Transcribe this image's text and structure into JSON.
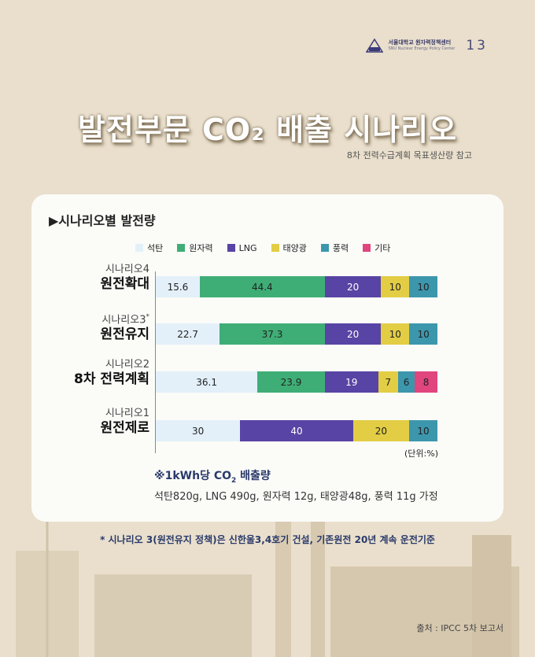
{
  "header": {
    "org_ko": "서울대학교 원자력정책센터",
    "org_en": "SNU Nuclear Energy Policy Center",
    "page_number": "13"
  },
  "title": "발전부문 CO₂ 배출 시나리오",
  "subtitle": "8차 전력수급계획 목표생산량 참고",
  "section_title": "▶시나리오별 발전량",
  "legend": [
    {
      "label": "석탄",
      "color": "#e3f0f9"
    },
    {
      "label": "원자력",
      "color": "#3fae76"
    },
    {
      "label": "LNG",
      "color": "#5844a4"
    },
    {
      "label": "태양광",
      "color": "#e2cd45"
    },
    {
      "label": "풍력",
      "color": "#3c97ad"
    },
    {
      "label": "기타",
      "color": "#e0457e"
    }
  ],
  "chart_data": {
    "type": "bar",
    "orientation": "horizontal",
    "stacked": true,
    "unit": "(단위:%)",
    "categories": [
      {
        "scenario": "시나리오4",
        "name": "원전확대",
        "mark": ""
      },
      {
        "scenario": "시나리오3",
        "name": "원전유지",
        "mark": "*"
      },
      {
        "scenario": "시나리오2",
        "name": "8차 전력계획",
        "mark": ""
      },
      {
        "scenario": "시나리오1",
        "name": "원전제로",
        "mark": ""
      }
    ],
    "series": [
      {
        "name": "석탄",
        "values": [
          15.6,
          22.7,
          36.1,
          30
        ]
      },
      {
        "name": "원자력",
        "values": [
          44.4,
          37.3,
          23.9,
          0
        ]
      },
      {
        "name": "LNG",
        "values": [
          20,
          20,
          19,
          40
        ]
      },
      {
        "name": "태양광",
        "values": [
          10,
          10,
          7,
          20
        ]
      },
      {
        "name": "풍력",
        "values": [
          10,
          10,
          6,
          10
        ]
      },
      {
        "name": "기타",
        "values": [
          0,
          0,
          8,
          0
        ]
      }
    ]
  },
  "note": {
    "title_prefix": "※1kWh당 CO",
    "title_sub": "2",
    "title_suffix": " 배출량",
    "text": "석탄820g, LNG 490g, 원자력 12g, 태양광48g, 풍력 11g 가정"
  },
  "footnote": "* 시나리오 3(원전유지 정책)은 신한울3,4호기 건설, 기존원전 20년 계속 운전기준",
  "source": "출처 : IPCC 5차 보고서"
}
